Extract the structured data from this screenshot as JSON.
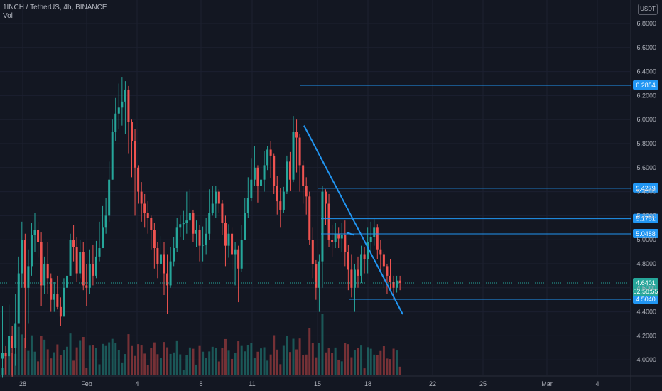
{
  "header": {
    "symbol_line": "1INCH / TetherUS, 4h, BINANCE",
    "volume_label": "Vol"
  },
  "currency_button": "USDT",
  "colors": {
    "background": "#131722",
    "up": "#26a69a",
    "down": "#ef5350",
    "level_line": "#2196f3",
    "trendline": "#2196f3"
  },
  "chart_data": {
    "type": "candlestick",
    "y_range": [
      3.82,
      6.92
    ],
    "y_ticks": [
      "6.8000",
      "6.6000",
      "6.4000",
      "6.2000",
      "6.0000",
      "5.8000",
      "5.6000",
      "5.4000",
      "5.2000",
      "5.0000",
      "4.8000",
      "4.6000",
      "4.4000",
      "4.2000",
      "4.0000"
    ],
    "x_ticks": [
      "28",
      "Feb",
      "4",
      "8",
      "11",
      "15",
      "18",
      "22",
      "25",
      "Mar",
      "4"
    ],
    "levels": [
      {
        "price": 6.2854,
        "label": "6.2854",
        "color": "#2196f3"
      },
      {
        "price": 5.4279,
        "label": "5.4279",
        "color": "#2196f3"
      },
      {
        "price": 5.1751,
        "label": "5.1751",
        "color": "#2196f3"
      },
      {
        "price": 5.0488,
        "label": "5.0488",
        "color": "#2196f3"
      },
      {
        "price": 4.504,
        "label": "4.5040",
        "color": "#2196f3"
      }
    ],
    "last_price": {
      "price": 4.6401,
      "label": "4.6401",
      "countdown": "02:58:55",
      "color": "#26a69a"
    },
    "trendlines": [
      {
        "from": [
          "14",
          5.95
        ],
        "to": [
          "20",
          4.38
        ]
      },
      {
        "from": [
          "16",
          5.06
        ],
        "to": [
          "17",
          5.04
        ]
      }
    ],
    "closes": [
      4.06,
      4.03,
      4.2,
      4.1,
      4.3,
      4.72,
      5.0,
      4.6,
      4.78,
      5.04,
      5.08,
      4.98,
      4.62,
      4.8,
      4.68,
      4.5,
      4.55,
      4.44,
      4.36,
      4.6,
      4.7,
      5.0,
      4.94,
      4.72,
      4.9,
      4.62,
      4.6,
      4.8,
      4.7,
      4.86,
      4.93,
      5.1,
      5.2,
      5.5,
      5.9,
      6.05,
      6.1,
      6.15,
      6.25,
      5.98,
      5.82,
      5.6,
      5.4,
      5.3,
      5.22,
      5.18,
      5.08,
      4.93,
      4.8,
      4.88,
      4.72,
      4.62,
      4.82,
      4.93,
      5.1,
      5.13,
      5.14,
      5.16,
      5.22,
      5.05,
      5.08,
      4.95,
      4.96,
      5.05,
      5.22,
      5.3,
      5.4,
      5.3,
      5.14,
      4.95,
      5.05,
      4.88,
      4.92,
      4.76,
      5.0,
      5.22,
      5.35,
      5.5,
      5.6,
      5.45,
      5.5,
      5.62,
      5.75,
      5.7,
      5.45,
      5.32,
      5.25,
      5.4,
      5.65,
      5.5,
      5.9,
      5.85,
      5.62,
      5.45,
      5.36,
      5.0,
      4.8,
      4.6,
      4.82,
      5.4,
      5.3,
      5.0,
      4.98,
      5.05,
      5.01,
      5.04,
      4.9,
      4.75,
      4.6,
      4.75,
      4.7,
      4.88,
      4.84,
      4.98,
      5.02,
      5.1,
      4.92,
      4.88,
      4.78,
      4.7,
      4.65,
      4.6,
      4.66,
      4.64
    ],
    "highs": [
      4.45,
      4.12,
      4.46,
      4.28,
      4.55,
      4.86,
      5.15,
      5.05,
      4.92,
      5.14,
      5.22,
      5.15,
      5.06,
      4.86,
      4.98,
      4.72,
      4.65,
      4.7,
      4.52,
      4.68,
      4.82,
      5.05,
      5.12,
      5.02,
      5.0,
      4.98,
      4.8,
      4.92,
      4.96,
      4.99,
      5.15,
      5.28,
      5.35,
      5.65,
      6.0,
      6.18,
      6.3,
      6.35,
      6.32,
      6.28,
      6.0,
      5.92,
      5.62,
      5.48,
      5.38,
      5.32,
      5.2,
      5.14,
      4.98,
      5.03,
      4.98,
      4.88,
      4.94,
      5.02,
      5.18,
      5.2,
      5.24,
      5.4,
      5.42,
      5.25,
      5.16,
      5.12,
      5.11,
      5.18,
      5.42,
      5.45,
      5.45,
      5.42,
      5.33,
      5.2,
      5.13,
      5.1,
      4.98,
      4.95,
      5.12,
      5.35,
      5.52,
      5.68,
      5.78,
      5.62,
      5.58,
      5.74,
      5.78,
      5.82,
      5.72,
      5.53,
      5.43,
      5.44,
      5.7,
      5.73,
      6.03,
      6.0,
      5.88,
      5.66,
      5.52,
      5.4,
      5.1,
      4.83,
      4.88,
      5.45,
      5.42,
      5.38,
      5.12,
      5.14,
      5.1,
      5.14,
      5.16,
      4.96,
      4.88,
      4.8,
      4.86,
      4.95,
      4.94,
      5.1,
      5.15,
      5.17,
      5.13,
      5.0,
      4.9,
      4.8,
      4.84,
      4.7,
      4.7,
      4.7
    ],
    "lows": [
      3.85,
      3.88,
      3.9,
      3.86,
      3.95,
      4.35,
      4.6,
      4.1,
      4.3,
      4.7,
      4.9,
      4.85,
      4.45,
      4.55,
      4.55,
      4.4,
      4.4,
      4.42,
      4.28,
      4.38,
      4.5,
      4.75,
      4.82,
      4.65,
      4.68,
      4.58,
      4.45,
      4.55,
      4.62,
      4.68,
      4.82,
      4.98,
      5.05,
      5.15,
      5.5,
      5.82,
      5.92,
      5.95,
      5.88,
      5.72,
      5.52,
      5.2,
      5.3,
      5.15,
      5.1,
      5.05,
      4.92,
      4.76,
      4.68,
      4.72,
      4.54,
      4.38,
      4.6,
      4.78,
      4.9,
      5.02,
      5.0,
      5.05,
      5.08,
      4.98,
      4.94,
      4.82,
      4.82,
      4.88,
      5.0,
      5.2,
      5.18,
      5.22,
      5.04,
      4.78,
      4.85,
      4.75,
      4.62,
      4.48,
      4.73,
      5.0,
      5.18,
      5.32,
      5.45,
      5.31,
      5.3,
      5.4,
      5.58,
      5.51,
      5.38,
      5.21,
      5.1,
      5.22,
      5.38,
      5.41,
      5.48,
      5.56,
      5.4,
      5.3,
      5.21,
      4.96,
      4.68,
      4.5,
      4.4,
      4.6,
      5.12,
      4.94,
      4.86,
      4.93,
      4.93,
      4.9,
      4.78,
      4.58,
      4.52,
      4.4,
      4.6,
      4.64,
      4.72,
      4.72,
      4.88,
      4.95,
      4.84,
      4.74,
      4.6,
      4.55,
      4.58,
      4.5,
      4.56,
      4.58
    ]
  }
}
